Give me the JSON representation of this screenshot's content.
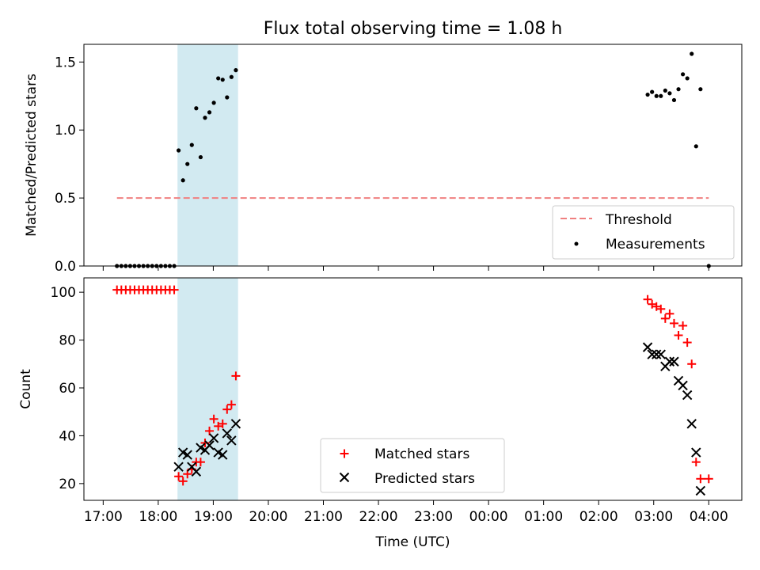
{
  "chart_data": [
    {
      "type": "scatter",
      "title": "Flux total observing time = 1.08 h",
      "xlabel": "",
      "ylabel": "Matched/Predicted stars",
      "ylim": [
        0,
        1.63
      ],
      "yticks": [
        0.0,
        0.5,
        1.0,
        1.5
      ],
      "ytick_labels": [
        "0.0",
        "0.5",
        "1.0",
        "1.5"
      ],
      "xlim_hours": [
        16.65,
        28.6
      ],
      "highlight_span_hours": [
        18.35,
        19.45
      ],
      "highlight_color": "#add8e6",
      "grid": false,
      "legend": "lower-right",
      "threshold": {
        "name": "Threshold",
        "value": 0.5,
        "x_range_hours": [
          17.25,
          28.0
        ],
        "color": "#f08080"
      },
      "series": [
        {
          "name": "Measurements",
          "color": "#000000",
          "marker": "dot",
          "x": [
            17.25,
            17.33,
            17.41,
            17.49,
            17.57,
            17.65,
            17.73,
            17.81,
            17.89,
            17.97,
            18.05,
            18.13,
            18.21,
            18.29,
            18.37,
            18.45,
            18.53,
            18.61,
            18.69,
            18.77,
            18.85,
            18.93,
            19.01,
            19.09,
            19.17,
            19.25,
            19.33,
            19.41,
            26.89,
            26.97,
            27.05,
            27.13,
            27.21,
            27.29,
            27.37,
            27.45,
            27.53,
            27.61,
            27.69,
            27.77,
            27.85,
            28.0
          ],
          "y": [
            0,
            0,
            0,
            0,
            0,
            0,
            0,
            0,
            0,
            0,
            0,
            0,
            0,
            0,
            0.85,
            0.63,
            0.75,
            0.89,
            1.16,
            0.8,
            1.09,
            1.13,
            1.2,
            1.38,
            1.37,
            1.24,
            1.39,
            1.44,
            1.26,
            1.28,
            1.25,
            1.25,
            1.29,
            1.27,
            1.22,
            1.3,
            1.41,
            1.38,
            1.56,
            0.88,
            1.3,
            0.0
          ]
        }
      ]
    },
    {
      "type": "scatter",
      "title": "",
      "xlabel": "Time (UTC)",
      "ylabel": "Count",
      "ylim": [
        13,
        106
      ],
      "yticks": [
        20,
        40,
        60,
        80,
        100
      ],
      "ytick_labels": [
        "20",
        "40",
        "60",
        "80",
        "100"
      ],
      "xticks_hours": [
        17,
        18,
        19,
        20,
        21,
        22,
        23,
        24,
        25,
        26,
        27,
        28
      ],
      "xtick_labels": [
        "17:00",
        "18:00",
        "19:00",
        "20:00",
        "21:00",
        "22:00",
        "23:00",
        "00:00",
        "01:00",
        "02:00",
        "03:00",
        "04:00"
      ],
      "xlim_hours": [
        16.65,
        28.6
      ],
      "highlight_span_hours": [
        18.35,
        19.45
      ],
      "highlight_color": "#add8e6",
      "grid": false,
      "legend": "lower-center",
      "series": [
        {
          "name": "Matched stars",
          "color": "#ff0000",
          "marker": "plus",
          "x": [
            17.25,
            17.33,
            17.41,
            17.49,
            17.57,
            17.65,
            17.73,
            17.81,
            17.89,
            17.97,
            18.05,
            18.13,
            18.21,
            18.29,
            18.37,
            18.45,
            18.53,
            18.61,
            18.69,
            18.77,
            18.85,
            18.93,
            19.01,
            19.09,
            19.17,
            19.25,
            19.33,
            19.41,
            26.89,
            26.97,
            27.05,
            27.13,
            27.21,
            27.29,
            27.37,
            27.45,
            27.53,
            27.61,
            27.69,
            27.77,
            27.85,
            28.0
          ],
          "y": [
            101,
            101,
            101,
            101,
            101,
            101,
            101,
            101,
            101,
            101,
            101,
            101,
            101,
            101,
            23,
            21,
            24,
            26,
            29,
            29,
            37,
            42,
            47,
            44,
            45,
            51,
            53,
            65,
            97,
            95,
            94,
            93,
            89,
            91,
            87,
            82,
            86,
            79,
            70,
            29,
            22,
            22
          ]
        },
        {
          "name": "Predicted stars",
          "color": "#000000",
          "marker": "x",
          "x": [
            18.37,
            18.45,
            18.53,
            18.61,
            18.69,
            18.77,
            18.85,
            18.93,
            19.01,
            19.09,
            19.17,
            19.25,
            19.33,
            19.41,
            26.89,
            26.97,
            27.05,
            27.13,
            27.21,
            27.29,
            27.37,
            27.45,
            27.53,
            27.61,
            27.69,
            27.77,
            27.85
          ],
          "y": [
            27,
            33,
            32,
            27,
            25,
            35,
            34,
            36,
            39,
            33,
            32,
            41,
            38,
            45,
            77,
            74,
            74,
            74,
            69,
            71,
            71,
            63,
            61,
            57,
            45,
            33,
            17
          ]
        }
      ]
    }
  ]
}
